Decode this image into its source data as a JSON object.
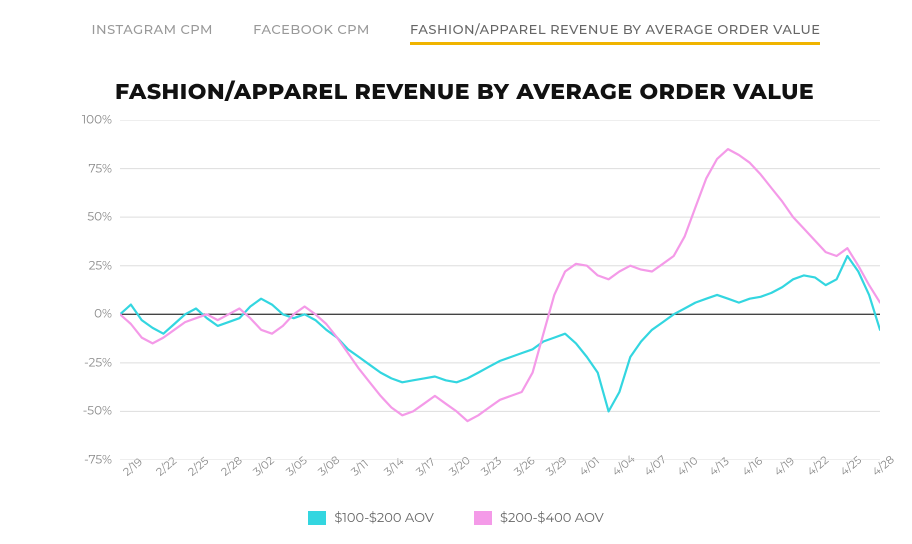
{
  "tabs": [
    {
      "label": "INSTAGRAM CPM",
      "active": false
    },
    {
      "label": "FACEBOOK CPM",
      "active": false
    },
    {
      "label": "FASHION/APPAREL REVENUE BY AVERAGE ORDER VALUE",
      "active": true
    }
  ],
  "title": "FASHION/APPAREL REVENUE BY AVERAGE ORDER VALUE",
  "chart": {
    "type": "line",
    "background_color": "#ffffff",
    "grid_color": "#dddddd",
    "zero_line_color": "#444444",
    "line_width": 2.2,
    "y_axis_font_size": 12,
    "x_axis_font_size": 11,
    "label_color": "#888888",
    "ylim": [
      -75,
      100
    ],
    "ytick_step": 25,
    "y_ticks": [
      -75,
      -50,
      -25,
      0,
      25,
      50,
      75,
      100
    ],
    "y_tick_labels": [
      "-75%",
      "-50%",
      "-25%",
      "0%",
      "25%",
      "50%",
      "75%",
      "100%"
    ],
    "x_dates": [
      "2/19",
      "2/20",
      "2/21",
      "2/22",
      "2/23",
      "2/24",
      "2/25",
      "2/26",
      "2/27",
      "2/28",
      "2/29",
      "3/01",
      "3/02",
      "3/03",
      "3/04",
      "3/05",
      "3/06",
      "3/07",
      "3/08",
      "3/09",
      "3/10",
      "3/11",
      "3/12",
      "3/13",
      "3/14",
      "3/15",
      "3/16",
      "3/17",
      "3/18",
      "3/19",
      "3/20",
      "3/21",
      "3/22",
      "3/23",
      "3/24",
      "3/25",
      "3/26",
      "3/27",
      "3/28",
      "3/29",
      "3/30",
      "3/31",
      "4/01",
      "4/02",
      "4/03",
      "4/04",
      "4/05",
      "4/06",
      "4/07",
      "4/08",
      "4/09",
      "4/10",
      "4/11",
      "4/12",
      "4/13",
      "4/14",
      "4/15",
      "4/16",
      "4/17",
      "4/18",
      "4/19",
      "4/20",
      "4/21",
      "4/22",
      "4/23",
      "4/24",
      "4/25",
      "4/26",
      "4/27",
      "4/28",
      "4/29"
    ],
    "x_tick_every": 3,
    "x_tick_labels": [
      "2/19",
      "2/22",
      "2/25",
      "2/28",
      "3/02",
      "3/05",
      "3/08",
      "3/11",
      "3/14",
      "3/17",
      "3/20",
      "3/23",
      "3/26",
      "3/29",
      "4/01",
      "4/04",
      "4/07",
      "4/10",
      "4/13",
      "4/16",
      "4/19",
      "4/22",
      "4/25",
      "4/28"
    ],
    "series": [
      {
        "name": "$100-$200 AOV",
        "color": "#33d6e0",
        "values": [
          0,
          5,
          -3,
          -7,
          -10,
          -5,
          0,
          3,
          -2,
          -6,
          -4,
          -2,
          4,
          8,
          5,
          0,
          -2,
          0,
          -3,
          -8,
          -12,
          -18,
          -22,
          -26,
          -30,
          -33,
          -35,
          -34,
          -33,
          -32,
          -34,
          -35,
          -33,
          -30,
          -27,
          -24,
          -22,
          -20,
          -18,
          -14,
          -12,
          -10,
          -15,
          -22,
          -30,
          -50,
          -40,
          -22,
          -14,
          -8,
          -4,
          0,
          3,
          6,
          8,
          10,
          8,
          6,
          8,
          9,
          11,
          14,
          18,
          20,
          19,
          15,
          18,
          30,
          22,
          10,
          -8
        ]
      },
      {
        "name": "$200-$400 AOV",
        "color": "#f49ae8",
        "values": [
          0,
          -5,
          -12,
          -15,
          -12,
          -8,
          -4,
          -2,
          0,
          -3,
          0,
          3,
          -2,
          -8,
          -10,
          -6,
          0,
          4,
          0,
          -5,
          -12,
          -20,
          -28,
          -35,
          -42,
          -48,
          -52,
          -50,
          -46,
          -42,
          -46,
          -50,
          -55,
          -52,
          -48,
          -44,
          -42,
          -40,
          -30,
          -10,
          10,
          22,
          26,
          25,
          20,
          18,
          22,
          25,
          23,
          22,
          26,
          30,
          40,
          55,
          70,
          80,
          85,
          82,
          78,
          72,
          65,
          58,
          50,
          44,
          38,
          32,
          30,
          34,
          25,
          15,
          6
        ]
      }
    ],
    "legend": [
      {
        "label": "$100-$200 AOV",
        "color": "#33d6e0"
      },
      {
        "label": "$200-$400 AOV",
        "color": "#f49ae8"
      }
    ]
  },
  "accent_color": "#f0b400",
  "title_font_size": 22,
  "title_color": "#111111",
  "tab_font_size": 13,
  "tab_color_inactive": "#999999",
  "tab_color_active": "#666666"
}
